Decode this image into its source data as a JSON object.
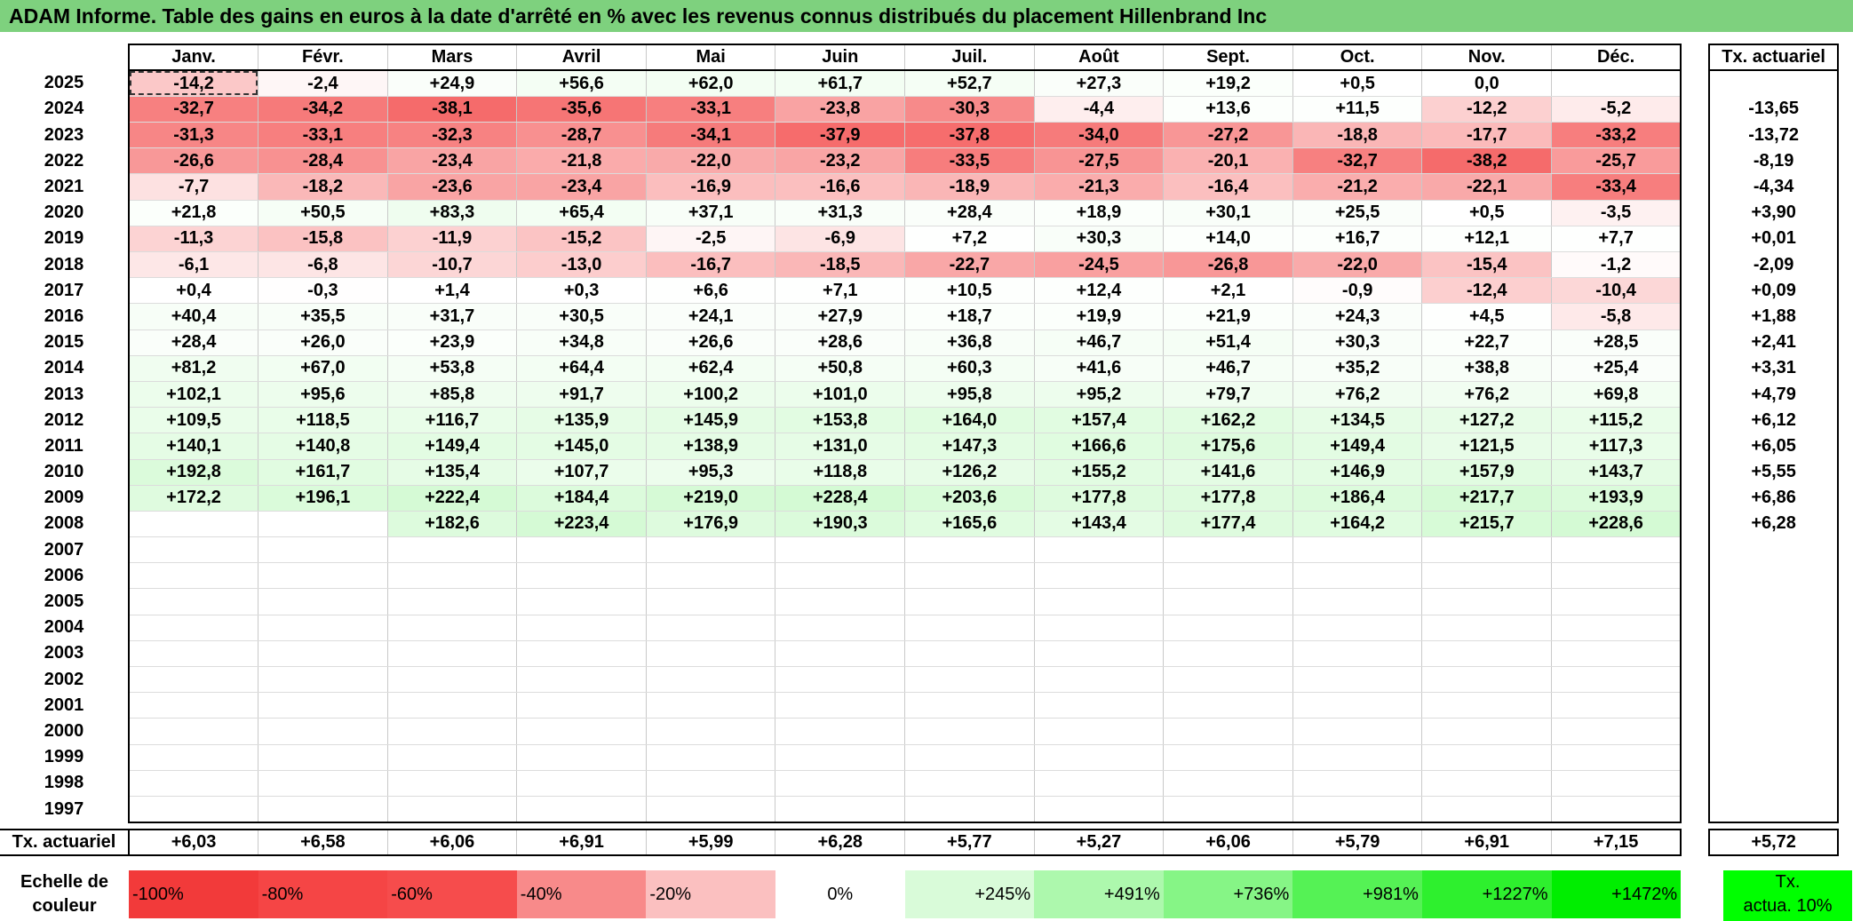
{
  "title": "ADAM Informe. Table des gains en euros à la date d'arrêté en % avec les revenus connus distribués du placement Hillenbrand Inc",
  "months": [
    "Janv.",
    "Févr.",
    "Mars",
    "Avril",
    "Mai",
    "Juin",
    "Juil.",
    "Août",
    "Sept.",
    "Oct.",
    "Nov.",
    "Déc."
  ],
  "tx_header": "Tx. actuariel",
  "rows": [
    {
      "year": "2025",
      "vals": [
        "-14,2",
        "-2,4",
        "+24,9",
        "+56,6",
        "+62,0",
        "+61,7",
        "+52,7",
        "+27,3",
        "+19,2",
        "+0,5",
        "0,0",
        ""
      ],
      "tx": ""
    },
    {
      "year": "2024",
      "vals": [
        "-32,7",
        "-34,2",
        "-38,1",
        "-35,6",
        "-33,1",
        "-23,8",
        "-30,3",
        "-4,4",
        "+13,6",
        "+11,5",
        "-12,2",
        "-5,2"
      ],
      "tx": "-13,65"
    },
    {
      "year": "2023",
      "vals": [
        "-31,3",
        "-33,1",
        "-32,3",
        "-28,7",
        "-34,1",
        "-37,9",
        "-37,8",
        "-34,0",
        "-27,2",
        "-18,8",
        "-17,7",
        "-33,2"
      ],
      "tx": "-13,72"
    },
    {
      "year": "2022",
      "vals": [
        "-26,6",
        "-28,4",
        "-23,4",
        "-21,8",
        "-22,0",
        "-23,2",
        "-33,5",
        "-27,5",
        "-20,1",
        "-32,7",
        "-38,2",
        "-25,7"
      ],
      "tx": "-8,19"
    },
    {
      "year": "2021",
      "vals": [
        "-7,7",
        "-18,2",
        "-23,6",
        "-23,4",
        "-16,9",
        "-16,6",
        "-18,9",
        "-21,3",
        "-16,4",
        "-21,2",
        "-22,1",
        "-33,4"
      ],
      "tx": "-4,34"
    },
    {
      "year": "2020",
      "vals": [
        "+21,8",
        "+50,5",
        "+83,3",
        "+65,4",
        "+37,1",
        "+31,3",
        "+28,4",
        "+18,9",
        "+30,1",
        "+25,5",
        "+0,5",
        "-3,5"
      ],
      "tx": "+3,90"
    },
    {
      "year": "2019",
      "vals": [
        "-11,3",
        "-15,8",
        "-11,9",
        "-15,2",
        "-2,5",
        "-6,9",
        "+7,2",
        "+30,3",
        "+14,0",
        "+16,7",
        "+12,1",
        "+7,7"
      ],
      "tx": "+0,01"
    },
    {
      "year": "2018",
      "vals": [
        "-6,1",
        "-6,8",
        "-10,7",
        "-13,0",
        "-16,7",
        "-18,5",
        "-22,7",
        "-24,5",
        "-26,8",
        "-22,0",
        "-15,4",
        "-1,2"
      ],
      "tx": "-2,09"
    },
    {
      "year": "2017",
      "vals": [
        "+0,4",
        "-0,3",
        "+1,4",
        "+0,3",
        "+6,6",
        "+7,1",
        "+10,5",
        "+12,4",
        "+2,1",
        "-0,9",
        "-12,4",
        "-10,4"
      ],
      "tx": "+0,09"
    },
    {
      "year": "2016",
      "vals": [
        "+40,4",
        "+35,5",
        "+31,7",
        "+30,5",
        "+24,1",
        "+27,9",
        "+18,7",
        "+19,9",
        "+21,9",
        "+24,3",
        "+4,5",
        "-5,8"
      ],
      "tx": "+1,88"
    },
    {
      "year": "2015",
      "vals": [
        "+28,4",
        "+26,0",
        "+23,9",
        "+34,8",
        "+26,6",
        "+28,6",
        "+36,8",
        "+46,7",
        "+51,4",
        "+30,3",
        "+22,7",
        "+28,5"
      ],
      "tx": "+2,41"
    },
    {
      "year": "2014",
      "vals": [
        "+81,2",
        "+67,0",
        "+53,8",
        "+64,4",
        "+62,4",
        "+50,8",
        "+60,3",
        "+41,6",
        "+46,7",
        "+35,2",
        "+38,8",
        "+25,4"
      ],
      "tx": "+3,31"
    },
    {
      "year": "2013",
      "vals": [
        "+102,1",
        "+95,6",
        "+85,8",
        "+91,7",
        "+100,2",
        "+101,0",
        "+95,8",
        "+95,2",
        "+79,7",
        "+76,2",
        "+76,2",
        "+69,8"
      ],
      "tx": "+4,79"
    },
    {
      "year": "2012",
      "vals": [
        "+109,5",
        "+118,5",
        "+116,7",
        "+135,9",
        "+145,9",
        "+153,8",
        "+164,0",
        "+157,4",
        "+162,2",
        "+134,5",
        "+127,2",
        "+115,2"
      ],
      "tx": "+6,12"
    },
    {
      "year": "2011",
      "vals": [
        "+140,1",
        "+140,8",
        "+149,4",
        "+145,0",
        "+138,9",
        "+131,0",
        "+147,3",
        "+166,6",
        "+175,6",
        "+149,4",
        "+121,5",
        "+117,3"
      ],
      "tx": "+6,05"
    },
    {
      "year": "2010",
      "vals": [
        "+192,8",
        "+161,7",
        "+135,4",
        "+107,7",
        "+95,3",
        "+118,8",
        "+126,2",
        "+155,2",
        "+141,6",
        "+146,9",
        "+157,9",
        "+143,7"
      ],
      "tx": "+5,55"
    },
    {
      "year": "2009",
      "vals": [
        "+172,2",
        "+196,1",
        "+222,4",
        "+184,4",
        "+219,0",
        "+228,4",
        "+203,6",
        "+177,8",
        "+177,8",
        "+186,4",
        "+217,7",
        "+193,9"
      ],
      "tx": "+6,86"
    },
    {
      "year": "2008",
      "vals": [
        "",
        "",
        "+182,6",
        "+223,4",
        "+176,9",
        "+190,3",
        "+165,6",
        "+143,4",
        "+177,4",
        "+164,2",
        "+215,7",
        "+228,6"
      ],
      "tx": "+6,28"
    },
    {
      "year": "2007",
      "vals": [
        "",
        "",
        "",
        "",
        "",
        "",
        "",
        "",
        "",
        "",
        "",
        ""
      ],
      "tx": ""
    },
    {
      "year": "2006",
      "vals": [
        "",
        "",
        "",
        "",
        "",
        "",
        "",
        "",
        "",
        "",
        "",
        ""
      ],
      "tx": ""
    },
    {
      "year": "2005",
      "vals": [
        "",
        "",
        "",
        "",
        "",
        "",
        "",
        "",
        "",
        "",
        "",
        ""
      ],
      "tx": ""
    },
    {
      "year": "2004",
      "vals": [
        "",
        "",
        "",
        "",
        "",
        "",
        "",
        "",
        "",
        "",
        "",
        ""
      ],
      "tx": ""
    },
    {
      "year": "2003",
      "vals": [
        "",
        "",
        "",
        "",
        "",
        "",
        "",
        "",
        "",
        "",
        "",
        ""
      ],
      "tx": ""
    },
    {
      "year": "2002",
      "vals": [
        "",
        "",
        "",
        "",
        "",
        "",
        "",
        "",
        "",
        "",
        "",
        ""
      ],
      "tx": ""
    },
    {
      "year": "2001",
      "vals": [
        "",
        "",
        "",
        "",
        "",
        "",
        "",
        "",
        "",
        "",
        "",
        ""
      ],
      "tx": ""
    },
    {
      "year": "2000",
      "vals": [
        "",
        "",
        "",
        "",
        "",
        "",
        "",
        "",
        "",
        "",
        "",
        ""
      ],
      "tx": ""
    },
    {
      "year": "1999",
      "vals": [
        "",
        "",
        "",
        "",
        "",
        "",
        "",
        "",
        "",
        "",
        "",
        ""
      ],
      "tx": ""
    },
    {
      "year": "1998",
      "vals": [
        "",
        "",
        "",
        "",
        "",
        "",
        "",
        "",
        "",
        "",
        "",
        ""
      ],
      "tx": ""
    },
    {
      "year": "1997",
      "vals": [
        "",
        "",
        "",
        "",
        "",
        "",
        "",
        "",
        "",
        "",
        "",
        ""
      ],
      "tx": ""
    }
  ],
  "tx_row": {
    "label": "Tx. actuariel",
    "vals": [
      "+6,03",
      "+6,58",
      "+6,06",
      "+6,91",
      "+5,99",
      "+6,28",
      "+5,77",
      "+5,27",
      "+6,06",
      "+5,79",
      "+6,91",
      "+7,15"
    ],
    "tx": "+5,72"
  },
  "scale": {
    "label_line1": "Echelle de",
    "label_line2": "couleur",
    "items": [
      {
        "label": "-100%",
        "color": "#f23a3a"
      },
      {
        "label": "-80%",
        "color": "#f54545"
      },
      {
        "label": "-60%",
        "color": "#f64c4c"
      },
      {
        "label": "-40%",
        "color": "#f88a8a"
      },
      {
        "label": "-20%",
        "color": "#fbc0c0"
      },
      {
        "label": "0%",
        "color": "#ffffff"
      },
      {
        "label": "+245%",
        "color": "#d9fbd9"
      },
      {
        "label": "+491%",
        "color": "#adf8ad"
      },
      {
        "label": "+736%",
        "color": "#86f586"
      },
      {
        "label": "+981%",
        "color": "#55f255"
      },
      {
        "label": "+1227%",
        "color": "#2ef02e"
      },
      {
        "label": "+1472%",
        "color": "#00ee00"
      }
    ],
    "tx_line1": "Tx.",
    "tx_line2": "actua. 10%",
    "tx_color": "#00ff00"
  }
}
